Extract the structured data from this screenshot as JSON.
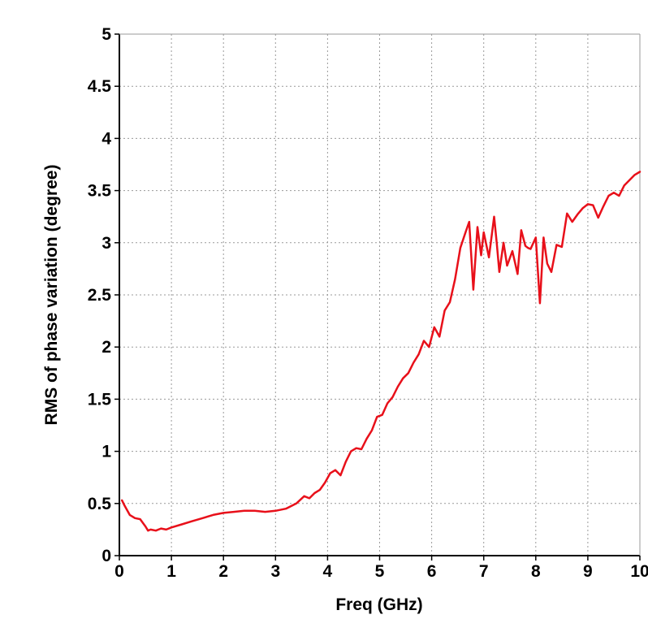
{
  "chart_data": {
    "type": "line",
    "title": "",
    "xlabel": "Freq (GHz)",
    "ylabel": "RMS of phase variation (degree)",
    "xlim": [
      0,
      10
    ],
    "ylim": [
      0,
      5
    ],
    "xticks": [
      "0",
      "1",
      "2",
      "3",
      "4",
      "5",
      "6",
      "7",
      "8",
      "9",
      "10"
    ],
    "yticks": [
      "0",
      "0.5",
      "1",
      "1.5",
      "2",
      "2.5",
      "3",
      "3.5",
      "4",
      "4.5",
      "5"
    ],
    "grid": true,
    "legend": "none",
    "series": [
      {
        "color": "#e8101a",
        "x": [
          0.05,
          0.1,
          0.2,
          0.3,
          0.4,
          0.5,
          0.55,
          0.6,
          0.7,
          0.8,
          0.9,
          1.0,
          1.2,
          1.4,
          1.6,
          1.8,
          2.0,
          2.2,
          2.4,
          2.6,
          2.8,
          3.0,
          3.2,
          3.4,
          3.55,
          3.65,
          3.75,
          3.85,
          3.95,
          4.05,
          4.15,
          4.25,
          4.35,
          4.45,
          4.55,
          4.65,
          4.75,
          4.85,
          4.95,
          5.05,
          5.15,
          5.25,
          5.35,
          5.45,
          5.55,
          5.65,
          5.75,
          5.85,
          5.95,
          6.05,
          6.15,
          6.25,
          6.35,
          6.45,
          6.55,
          6.65,
          6.72,
          6.8,
          6.88,
          6.95,
          7.0,
          7.1,
          7.2,
          7.25,
          7.3,
          7.38,
          7.45,
          7.55,
          7.65,
          7.72,
          7.8,
          7.85,
          7.9,
          8.0,
          8.08,
          8.15,
          8.22,
          8.3,
          8.4,
          8.5,
          8.6,
          8.7,
          8.8,
          8.9,
          9.0,
          9.1,
          9.2,
          9.3,
          9.4,
          9.5,
          9.6,
          9.7,
          9.8,
          9.9,
          10.0
        ],
        "y": [
          0.53,
          0.48,
          0.39,
          0.36,
          0.35,
          0.28,
          0.24,
          0.25,
          0.24,
          0.26,
          0.25,
          0.27,
          0.3,
          0.33,
          0.36,
          0.39,
          0.41,
          0.42,
          0.43,
          0.43,
          0.42,
          0.43,
          0.45,
          0.5,
          0.57,
          0.55,
          0.6,
          0.63,
          0.7,
          0.79,
          0.82,
          0.77,
          0.9,
          1.0,
          1.03,
          1.02,
          1.12,
          1.2,
          1.33,
          1.35,
          1.46,
          1.52,
          1.62,
          1.7,
          1.75,
          1.85,
          1.93,
          2.06,
          2.0,
          2.19,
          2.1,
          2.35,
          2.43,
          2.65,
          2.95,
          3.1,
          3.2,
          2.55,
          3.15,
          2.88,
          3.1,
          2.86,
          3.25,
          3.0,
          2.72,
          3.0,
          2.78,
          2.92,
          2.7,
          3.12,
          2.97,
          2.95,
          2.94,
          3.05,
          2.42,
          3.05,
          2.8,
          2.72,
          2.98,
          2.96,
          3.28,
          3.2,
          3.27,
          3.33,
          3.37,
          3.36,
          3.24,
          3.35,
          3.45,
          3.48,
          3.45,
          3.55,
          3.6,
          3.65,
          3.68
        ]
      }
    ]
  }
}
